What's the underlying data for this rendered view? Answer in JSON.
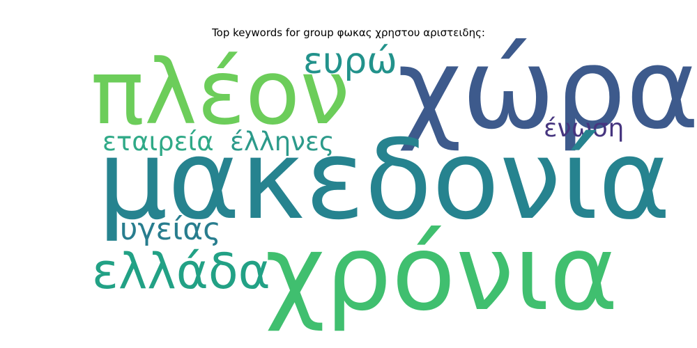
{
  "title": "Top keywords for group φωκας χρηστου αριστειδης:",
  "words": {
    "makedonia": {
      "text": "μακεδονία",
      "color": "#26838f"
    },
    "xronia": {
      "text": "χρόνια",
      "color": "#40bf6f"
    },
    "xwra": {
      "text": "χώρα",
      "color": "#3d5a8c"
    },
    "pleon": {
      "text": "πλέον",
      "color": "#6ccd5a"
    },
    "ellada": {
      "text": "ελλάδα",
      "color": "#22a185"
    },
    "eurw": {
      "text": "ευρώ",
      "color": "#22928b"
    },
    "ygeias": {
      "text": "υγείας",
      "color": "#287d8e"
    },
    "etaireia": {
      "text": "εταιρεία",
      "color": "#2fa987"
    },
    "ellhnes": {
      "text": "έλληνες",
      "color": "#2c9a8a"
    },
    "enwsh": {
      "text": "ένωση",
      "color": "#46357f"
    }
  }
}
